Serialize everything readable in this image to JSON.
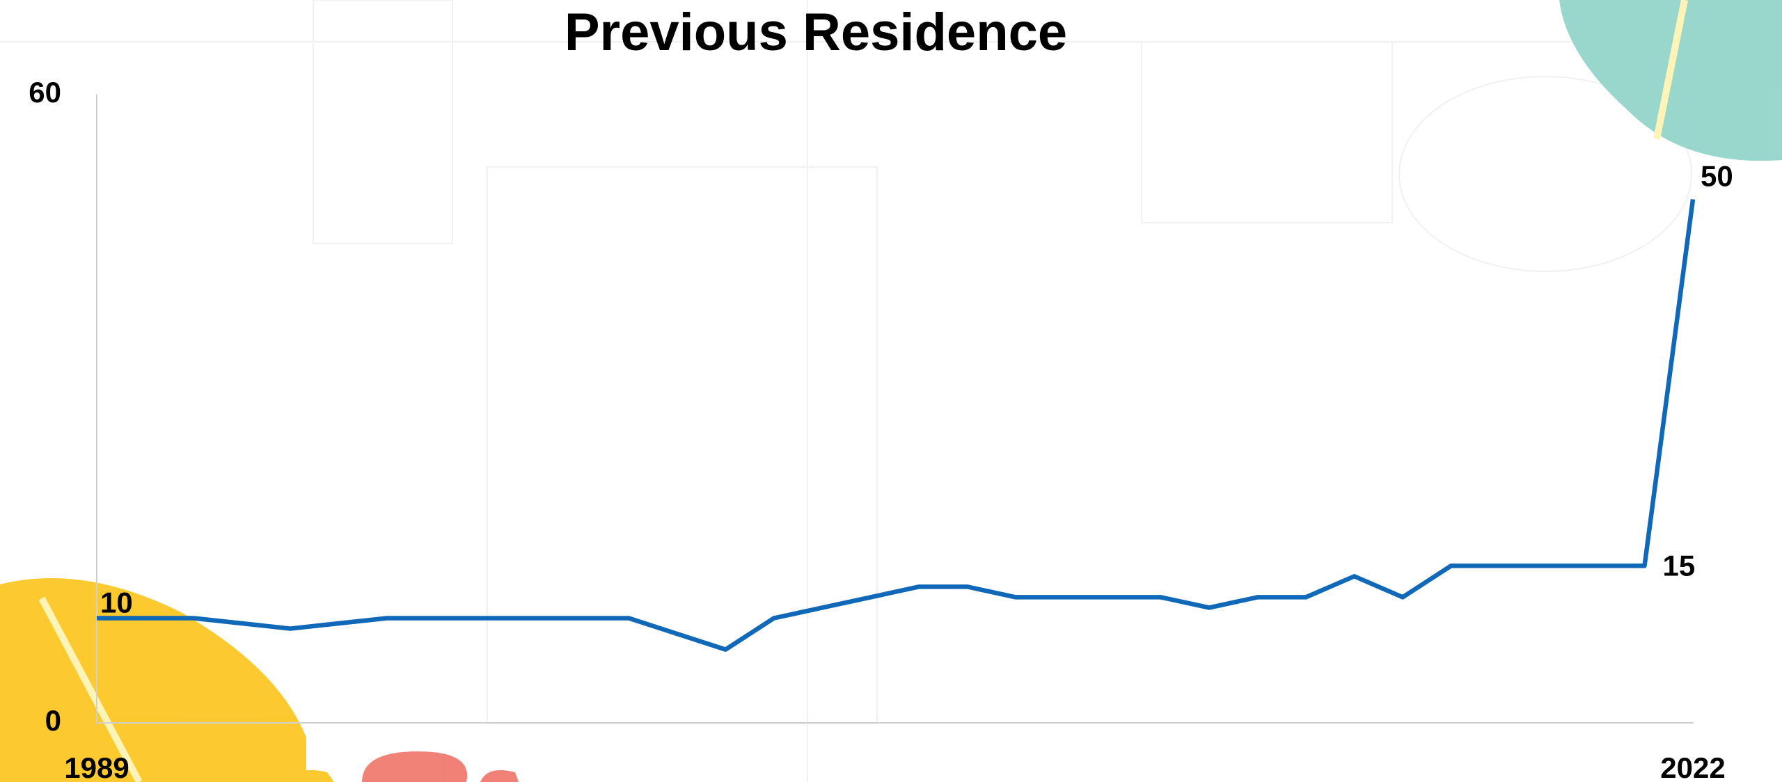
{
  "chart_data": {
    "type": "line",
    "title": "Previous Residence",
    "x": [
      1989,
      1990,
      1991,
      1992,
      1993,
      1994,
      1995,
      1996,
      1997,
      1998,
      1999,
      2000,
      2001,
      2002,
      2003,
      2004,
      2005,
      2006,
      2007,
      2008,
      2009,
      2010,
      2011,
      2012,
      2013,
      2014,
      2015,
      2016,
      2017,
      2018,
      2019,
      2020,
      2021,
      2022
    ],
    "values": [
      10,
      10,
      10,
      9.5,
      9,
      9.5,
      10,
      10,
      10,
      10,
      10,
      10,
      8.5,
      7,
      10,
      11,
      12,
      13,
      13,
      12,
      12,
      12,
      12,
      11,
      12,
      12,
      14,
      12,
      15,
      15,
      15,
      15,
      15,
      50
    ],
    "color": "#1068b8",
    "labeled_points": [
      0,
      32,
      33
    ],
    "xlim": [
      1989,
      2022
    ],
    "xticks": [
      1989,
      2022
    ],
    "ylim": [
      0,
      60
    ],
    "yticks": [
      0,
      60
    ]
  }
}
